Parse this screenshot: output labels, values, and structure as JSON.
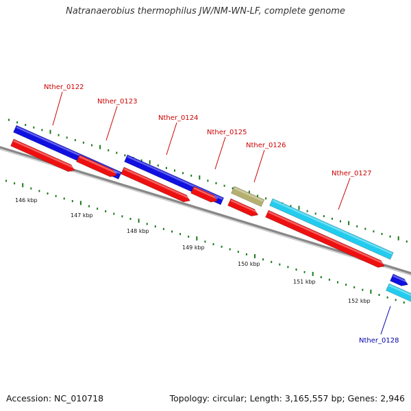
{
  "title": "Natranaerobius thermophilus JW/NM-WN-LF, complete genome",
  "footer": {
    "accession": "Accession: NC_010718",
    "summary": "Topology: circular; Length: 3,165,557 bp; Genes: 2,946"
  },
  "colors": {
    "blue_gene": "#1010e0",
    "red_gene": "#ee1010",
    "cyan_gene": "#22ccee",
    "olive_gene": "#b5b070",
    "backbone": "#888888",
    "tick": "#1a7a1a",
    "label_red": "#cc0000",
    "label_blue": "#0000aa"
  },
  "ruler": [
    "146 kbp",
    "147 kbp",
    "148 kbp",
    "149 kbp",
    "150 kbp",
    "151 kbp",
    "152 kbp"
  ],
  "genes": [
    {
      "label": "Nther_0122",
      "label_color": "red"
    },
    {
      "label": "Nther_0123",
      "label_color": "red"
    },
    {
      "label": "Nther_0124",
      "label_color": "red"
    },
    {
      "label": "Nther_0125",
      "label_color": "red"
    },
    {
      "label": "Nther_0126",
      "label_color": "red"
    },
    {
      "label": "Nther_0127",
      "label_color": "red"
    },
    {
      "label": "Nther_0128",
      "label_color": "blue"
    }
  ]
}
